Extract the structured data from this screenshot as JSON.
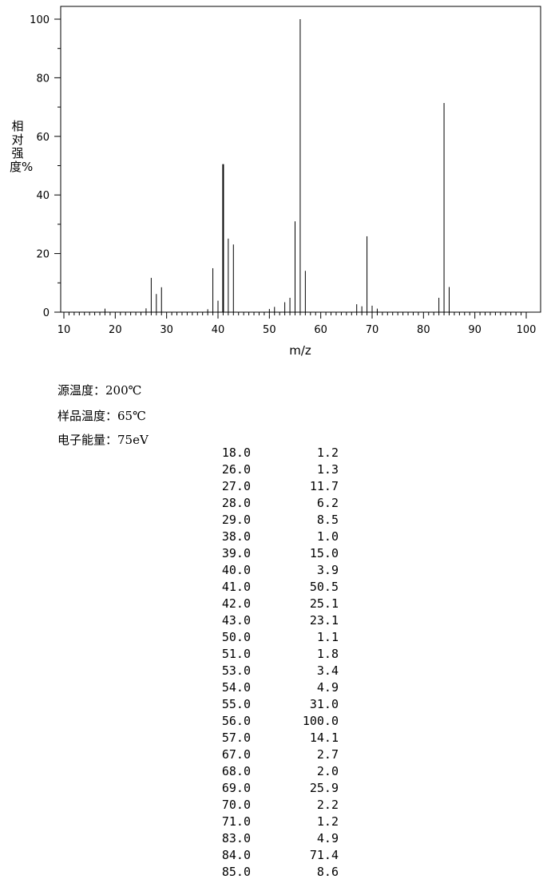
{
  "chart_data": {
    "type": "bar",
    "xlabel": "m/z",
    "ylabel": "相对强度%",
    "xlim": [
      10,
      100
    ],
    "ylim": [
      0,
      100
    ],
    "x_ticks": [
      "10",
      "20",
      "30",
      "40",
      "50",
      "60",
      "70",
      "80",
      "90",
      "100"
    ],
    "y_ticks": [
      "0",
      "20",
      "40",
      "60",
      "80",
      "100"
    ],
    "peaks": [
      {
        "mz": 18.0,
        "abundance": 1.2
      },
      {
        "mz": 26.0,
        "abundance": 1.3
      },
      {
        "mz": 27.0,
        "abundance": 11.7
      },
      {
        "mz": 28.0,
        "abundance": 6.2
      },
      {
        "mz": 29.0,
        "abundance": 8.5
      },
      {
        "mz": 38.0,
        "abundance": 1.0
      },
      {
        "mz": 39.0,
        "abundance": 15.0
      },
      {
        "mz": 40.0,
        "abundance": 3.9
      },
      {
        "mz": 41.0,
        "abundance": 50.5
      },
      {
        "mz": 42.0,
        "abundance": 25.1
      },
      {
        "mz": 43.0,
        "abundance": 23.1
      },
      {
        "mz": 50.0,
        "abundance": 1.1
      },
      {
        "mz": 51.0,
        "abundance": 1.8
      },
      {
        "mz": 53.0,
        "abundance": 3.4
      },
      {
        "mz": 54.0,
        "abundance": 4.9
      },
      {
        "mz": 55.0,
        "abundance": 31.0
      },
      {
        "mz": 56.0,
        "abundance": 100.0
      },
      {
        "mz": 57.0,
        "abundance": 14.1
      },
      {
        "mz": 67.0,
        "abundance": 2.7
      },
      {
        "mz": 68.0,
        "abundance": 2.0
      },
      {
        "mz": 69.0,
        "abundance": 25.9
      },
      {
        "mz": 70.0,
        "abundance": 2.2
      },
      {
        "mz": 71.0,
        "abundance": 1.2
      },
      {
        "mz": 83.0,
        "abundance": 4.9
      },
      {
        "mz": 84.0,
        "abundance": 71.4
      },
      {
        "mz": 85.0,
        "abundance": 8.6
      }
    ]
  },
  "conditions": {
    "source_temp": "源温度：200℃",
    "sample_temp": "样品温度：65℃",
    "electron_energy": "电子能量：75eV"
  },
  "peak_table": [
    {
      "mz": "18.0",
      "abundance": "1.2"
    },
    {
      "mz": "26.0",
      "abundance": "1.3"
    },
    {
      "mz": "27.0",
      "abundance": "11.7"
    },
    {
      "mz": "28.0",
      "abundance": "6.2"
    },
    {
      "mz": "29.0",
      "abundance": "8.5"
    },
    {
      "mz": "38.0",
      "abundance": "1.0"
    },
    {
      "mz": "39.0",
      "abundance": "15.0"
    },
    {
      "mz": "40.0",
      "abundance": "3.9"
    },
    {
      "mz": "41.0",
      "abundance": "50.5"
    },
    {
      "mz": "42.0",
      "abundance": "25.1"
    },
    {
      "mz": "43.0",
      "abundance": "23.1"
    },
    {
      "mz": "50.0",
      "abundance": "1.1"
    },
    {
      "mz": "51.0",
      "abundance": "1.8"
    },
    {
      "mz": "53.0",
      "abundance": "3.4"
    },
    {
      "mz": "54.0",
      "abundance": "4.9"
    },
    {
      "mz": "55.0",
      "abundance": "31.0"
    },
    {
      "mz": "56.0",
      "abundance": "100.0"
    },
    {
      "mz": "57.0",
      "abundance": "14.1"
    },
    {
      "mz": "67.0",
      "abundance": "2.7"
    },
    {
      "mz": "68.0",
      "abundance": "2.0"
    },
    {
      "mz": "69.0",
      "abundance": "25.9"
    },
    {
      "mz": "70.0",
      "abundance": "2.2"
    },
    {
      "mz": "71.0",
      "abundance": "1.2"
    },
    {
      "mz": "83.0",
      "abundance": "4.9"
    },
    {
      "mz": "84.0",
      "abundance": "71.4"
    },
    {
      "mz": "85.0",
      "abundance": "8.6"
    }
  ]
}
